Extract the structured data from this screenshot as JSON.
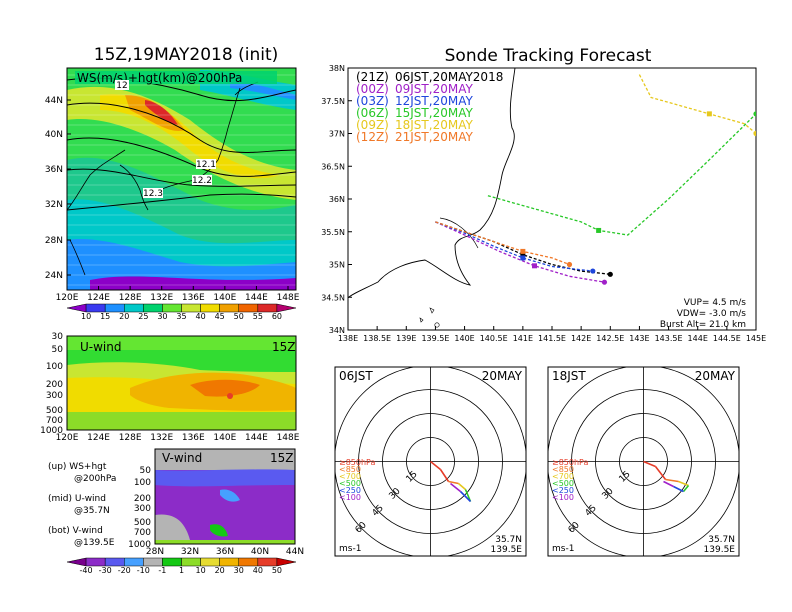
{
  "left_title": "15Z,19MAY2018 (init)",
  "right_title": "Sonde Tracking Forecast",
  "map_panel": {
    "label": "WS(m/s)+hgt(km)@200hPa",
    "contour_labels": [
      "12",
      "12.1",
      "12.2",
      "12.3"
    ],
    "x_ticks": [
      "120E",
      "124E",
      "128E",
      "132E",
      "136E",
      "140E",
      "144E",
      "148E"
    ],
    "y_ticks": [
      "44N",
      "40N",
      "36N",
      "32N",
      "28N",
      "24N"
    ],
    "colorbar": [
      "10",
      "15",
      "20",
      "25",
      "30",
      "35",
      "40",
      "45",
      "50",
      "55",
      "60"
    ],
    "colorbar_colors": [
      "#8c00c8",
      "#3a3af0",
      "#1e90ff",
      "#00c8c8",
      "#00d26e",
      "#64e632",
      "#c8e632",
      "#f0dc00",
      "#f0a000",
      "#f06400",
      "#dc2828",
      "#b4006e"
    ]
  },
  "u_panel": {
    "label": "U-wind",
    "time": "15Z",
    "y_ticks": [
      "30",
      "50",
      "100",
      "200",
      "300",
      "500",
      "700",
      "1000"
    ],
    "x_ticks": [
      "120E",
      "124E",
      "128E",
      "132E",
      "136E",
      "140E",
      "144E",
      "148E"
    ]
  },
  "v_panel": {
    "label": "V-wind",
    "time": "15Z",
    "y_ticks": [
      "50",
      "100",
      "200",
      "300",
      "500",
      "700",
      "1000"
    ],
    "x_ticks": [
      "28N",
      "32N",
      "36N",
      "40N",
      "44N"
    ],
    "colorbar": [
      "-40",
      "-30",
      "-20",
      "-10",
      "-1",
      "1",
      "10",
      "20",
      "30",
      "40",
      "50",
      "60"
    ],
    "colorbar_colors": [
      "#78008c",
      "#8c2cc8",
      "#5a5af0",
      "#46a0ff",
      "#b4b4b4",
      "#14c814",
      "#8cdc28",
      "#e6dc32",
      "#f0b400",
      "#f07800",
      "#e63c28",
      "#c80000"
    ]
  },
  "legend_notes": {
    "up_line1": "(up) WS+hgt",
    "up_line2": "@200hPa",
    "mid_line1": "(mid) U-wind",
    "mid_line2": "@35.7N",
    "bot_line1": "(bot) V-wind",
    "bot_line2": "@139.5E"
  },
  "track_panel": {
    "x_ticks": [
      "138E",
      "138.5E",
      "139E",
      "139.5E",
      "140E",
      "140.5E",
      "141E",
      "141.5E",
      "142E",
      "142.5E",
      "143E",
      "143.5E",
      "144E",
      "144.5E",
      "145E"
    ],
    "y_ticks": [
      "38N",
      "37.5N",
      "37N",
      "36.5N",
      "36N",
      "35.5N",
      "35N",
      "34.5N",
      "34N"
    ],
    "legend": [
      {
        "z": "(21Z)",
        "jst": "06JST,20MAY2018",
        "color": "#000000"
      },
      {
        "z": "(00Z)",
        "jst": "09JST,20MAY",
        "color": "#a020c8"
      },
      {
        "z": "(03Z)",
        "jst": "12JST,20MAY",
        "color": "#1e46dc"
      },
      {
        "z": "(06Z)",
        "jst": "15JST,20MAY",
        "color": "#28c828"
      },
      {
        "z": "(09Z)",
        "jst": "18JST,20MAY",
        "color": "#e6c81e"
      },
      {
        "z": "(12Z)",
        "jst": "21JST,20MAY",
        "color": "#f07828"
      }
    ],
    "vup": "VUP= 4.5 m/s",
    "vdw": "VDW= -3.0 m/s",
    "burst": "Burst Alt= 21.0 km"
  },
  "chart_data": [
    {
      "type": "line",
      "title": "Sonde Tracking Forecast",
      "xlim": [
        138,
        145
      ],
      "ylim": [
        34,
        38
      ],
      "series": [
        {
          "name": "(21Z) 06JST,20MAY2018",
          "lon": [
            139.5,
            140.0,
            140.5,
            141.0,
            141.5,
            142.0,
            142.5
          ],
          "lat": [
            35.65,
            35.5,
            35.35,
            35.15,
            35.0,
            34.9,
            34.85
          ]
        },
        {
          "name": "(00Z) 09JST,20MAY",
          "lon": [
            139.5,
            140.0,
            140.6,
            141.2,
            141.8,
            142.4
          ],
          "lat": [
            35.65,
            35.45,
            35.2,
            34.98,
            34.82,
            34.73
          ]
        },
        {
          "name": "(03Z) 12JST,20MAY",
          "lon": [
            139.5,
            140.0,
            140.5,
            141.0,
            141.5,
            142.2
          ],
          "lat": [
            35.65,
            35.48,
            35.28,
            35.1,
            34.97,
            34.9
          ]
        },
        {
          "name": "(06Z) 15JST,20MAY",
          "lon": [
            140.4,
            140.8,
            141.2,
            141.6,
            142.0,
            142.3,
            142.8,
            143.5,
            144.2,
            145.0
          ],
          "lat": [
            36.05,
            35.95,
            35.85,
            35.75,
            35.65,
            35.52,
            35.45,
            36.0,
            36.6,
            37.3
          ]
        },
        {
          "name": "(09Z) 18JST,20MAY",
          "lon": [
            143.0,
            143.2,
            143.6,
            144.2,
            144.8,
            145.0
          ],
          "lat": [
            37.9,
            37.55,
            37.45,
            37.3,
            37.15,
            37.0
          ]
        },
        {
          "name": "(12Z) 21JST,20MAY",
          "lon": [
            139.5,
            140.0,
            140.5,
            141.0,
            141.5,
            141.8
          ],
          "lat": [
            35.65,
            35.5,
            35.35,
            35.2,
            35.1,
            35.0
          ]
        }
      ]
    }
  ],
  "hodographs": [
    {
      "time": "06JST",
      "date": "20MAY",
      "loc1": "35.7N",
      "loc2": "139.5E",
      "unit": "ms-1",
      "rings": [
        "15",
        "30",
        "45",
        "60"
      ],
      "levels": [
        "≥850hPa",
        "<850",
        "<700",
        "<500",
        "<250",
        "<100"
      ]
    },
    {
      "time": "18JST",
      "date": "20MAY",
      "loc1": "35.7N",
      "loc2": "139.5E",
      "unit": "ms-1",
      "rings": [
        "15",
        "30",
        "45",
        "60"
      ],
      "levels": [
        "≥850hPa",
        "<850",
        "<700",
        "<500",
        "<250",
        "<100"
      ]
    }
  ]
}
